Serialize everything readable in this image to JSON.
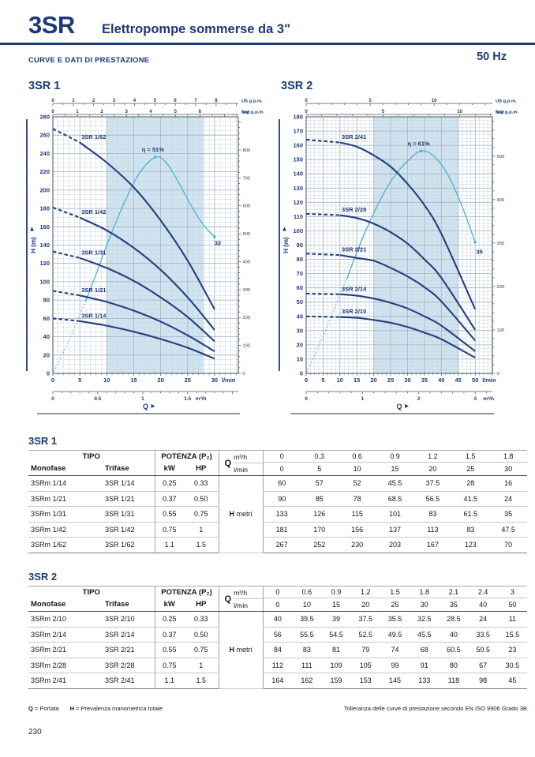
{
  "page": {
    "product_code": "3SR",
    "product_title": "Elettropompe sommerse da 3\"",
    "section_title": "CURVE E DATI DI PRESTAZIONE",
    "frequency": "50 Hz",
    "page_number": "230",
    "legend": [
      {
        "symbol": "Q",
        "text": "= Portata"
      },
      {
        "symbol": "H",
        "text": "= Prevalenza manometrica totale"
      }
    ],
    "tolerance_note": "Tolleranza delle curve di prestazione secondo EN ISO 9906 Grado 3B."
  },
  "colors": {
    "navy": "#1d3a78",
    "curve": "#24407c",
    "cyan": "#4fb0d4",
    "band": "#cfe4f0",
    "grid_minor": "#c9d4dc",
    "grid_major": "#9fb2bf",
    "axis": "#4c5258"
  },
  "chart_data": [
    {
      "type": "line",
      "title": "3SR 1",
      "xlabel": "Q",
      "ylabel": "H  (m)",
      "x_unit": "l/min",
      "xlim": [
        0,
        34.4
      ],
      "ylim": [
        0,
        280
      ],
      "x_major": 5,
      "x_minor": 1,
      "x_label_max": 30,
      "y_major": 20,
      "y_minor": 5,
      "band": [
        10,
        28
      ],
      "grid": true,
      "legend_position": "on-curve",
      "top_axes": [
        {
          "label": "US g.p.m.",
          "lmin_per_unit": 3.785,
          "tick_step": 1,
          "minor_step": 0.5,
          "label_max": 8
        },
        {
          "label": "Imp g.p.m.",
          "lmin_per_unit": 4.546,
          "tick_step": 1,
          "minor_step": 0.5,
          "label_max": 6
        }
      ],
      "bottom_axis": {
        "label": "m³/h",
        "lmin_per_unit": 16.6667,
        "tick_step": 0.5,
        "minor_step": 0.1,
        "label_max": 1.5
      },
      "right_axis": {
        "label": "feet",
        "m_per_unit": 0.3048,
        "tick_step": 100,
        "minor_step": 20,
        "label_max": 800
      },
      "x": [
        0,
        5,
        10,
        15,
        20,
        25,
        30
      ],
      "dash_until": 5,
      "series_label_x": 5.3,
      "series": [
        {
          "name": "3SR 1/62",
          "values": [
            267,
            252,
            230,
            203,
            167,
            123,
            70
          ]
        },
        {
          "name": "3SR 1/42",
          "values": [
            181,
            170,
            156,
            137,
            113,
            83,
            47.5
          ]
        },
        {
          "name": "3SR 1/31",
          "values": [
            133,
            126,
            115,
            101,
            83,
            61.5,
            35
          ]
        },
        {
          "name": "3SR 1/21",
          "values": [
            90,
            85,
            78,
            68.5,
            56.5,
            41.5,
            24
          ]
        },
        {
          "name": "3SR 1/14",
          "values": [
            60,
            57,
            52,
            45.5,
            37.5,
            28,
            16
          ]
        }
      ],
      "efficiency": {
        "label": "η = 51%",
        "end_label": "32",
        "solid_from": 6,
        "peak": [
          19,
          236
        ],
        "end_label_pos": [
          30.6,
          140
        ],
        "points": [
          [
            0.2,
            2
          ],
          [
            3,
            36
          ],
          [
            6,
            78
          ],
          [
            8,
            108
          ],
          [
            10,
            140
          ],
          [
            13,
            183
          ],
          [
            16,
            218
          ],
          [
            19,
            236
          ],
          [
            21,
            230
          ],
          [
            23,
            212
          ],
          [
            25,
            190
          ],
          [
            27,
            170
          ],
          [
            28.5,
            158
          ],
          [
            30,
            149
          ]
        ]
      }
    },
    {
      "type": "line",
      "title": "3SR 2",
      "xlabel": "Q",
      "ylabel": "H  (m)",
      "x_unit": "l/min",
      "xlim": [
        0,
        55.1
      ],
      "ylim": [
        0,
        180
      ],
      "x_major": 5,
      "x_minor": 1.25,
      "x_label_max": 50,
      "y_major": 10,
      "y_minor": 2.5,
      "band": [
        20,
        45
      ],
      "grid": true,
      "legend_position": "on-curve",
      "top_axes": [
        {
          "label": "US g.p.m.",
          "lmin_per_unit": 3.785,
          "tick_step": 5,
          "minor_step": 1,
          "label_max": 10
        },
        {
          "label": "Imp g.p.m.",
          "lmin_per_unit": 4.546,
          "tick_step": 5,
          "minor_step": 1,
          "label_max": 10
        }
      ],
      "bottom_axis": {
        "label": "m³/h",
        "lmin_per_unit": 16.6667,
        "tick_step": 1,
        "minor_step": 0.2,
        "label_max": 3
      },
      "right_axis": {
        "label": "feet",
        "m_per_unit": 0.3048,
        "tick_step": 100,
        "minor_step": 20,
        "label_max": 500
      },
      "x": [
        0,
        10,
        15,
        20,
        25,
        30,
        35,
        40,
        50
      ],
      "dash_until": 10,
      "series_label_x": 10.5,
      "series": [
        {
          "name": "3SR 2/41",
          "values": [
            164,
            162,
            159,
            153,
            145,
            133,
            118,
            98,
            45
          ]
        },
        {
          "name": "3SR 2/28",
          "values": [
            112,
            111,
            109,
            105,
            99,
            91,
            80,
            67,
            30.5
          ]
        },
        {
          "name": "3SR 2/21",
          "values": [
            84,
            83,
            81,
            79,
            74,
            68,
            60.5,
            50.5,
            23
          ]
        },
        {
          "name": "3SR 2/14",
          "values": [
            56,
            55.5,
            54.5,
            52.5,
            49.5,
            45.5,
            40,
            33.5,
            15.5
          ]
        },
        {
          "name": "3SR 2/10",
          "values": [
            40,
            39.5,
            39,
            37.5,
            35.5,
            32.5,
            28.5,
            24,
            11
          ]
        }
      ],
      "efficiency": {
        "label": "η = 61%",
        "end_label": "35",
        "solid_from": 12,
        "peak": [
          34,
          156
        ],
        "end_label_pos": [
          51.3,
          84
        ],
        "points": [
          [
            0.2,
            1
          ],
          [
            5,
            26
          ],
          [
            8,
            44
          ],
          [
            12,
            66
          ],
          [
            15,
            85
          ],
          [
            18,
            102
          ],
          [
            22,
            122
          ],
          [
            26,
            138
          ],
          [
            30,
            149
          ],
          [
            34,
            156
          ],
          [
            38,
            152
          ],
          [
            42,
            139
          ],
          [
            46,
            118
          ],
          [
            50,
            92
          ]
        ]
      }
    }
  ],
  "tables": [
    {
      "title": "3SR 1",
      "headers": {
        "tipo": "TIPO",
        "monofase": "Monofase",
        "trifase": "Trifase",
        "potenza": "POTENZA (P₂)",
        "kw": "kW",
        "hp": "HP",
        "q": "Q",
        "m3h": "m³/h",
        "lmin": "l/min",
        "h": "H",
        "h_unit": "metri"
      },
      "q_m3h": [
        "0",
        "0.3",
        "0.6",
        "0.9",
        "1.2",
        "1.5",
        "1.8"
      ],
      "q_lmin": [
        "0",
        "5",
        "10",
        "15",
        "20",
        "25",
        "30"
      ],
      "rows": [
        {
          "monofase": "3SRm 1/14",
          "trifase": "3SR 1/14",
          "kw": "0.25",
          "hp": "0.33",
          "h_values": [
            "60",
            "57",
            "52",
            "45.5",
            "37.5",
            "28",
            "16"
          ]
        },
        {
          "monofase": "3SRm 1/21",
          "trifase": "3SR 1/21",
          "kw": "0.37",
          "hp": "0.50",
          "h_values": [
            "90",
            "85",
            "78",
            "68.5",
            "56.5",
            "41.5",
            "24"
          ]
        },
        {
          "monofase": "3SRm 1/31",
          "trifase": "3SR 1/31",
          "kw": "0.55",
          "hp": "0.75",
          "h_values": [
            "133",
            "126",
            "115",
            "101",
            "83",
            "61.5",
            "35"
          ]
        },
        {
          "monofase": "3SRm 1/42",
          "trifase": "3SR 1/42",
          "kw": "0.75",
          "hp": "1",
          "h_values": [
            "181",
            "170",
            "156",
            "137",
            "113",
            "83",
            "47.5"
          ]
        },
        {
          "monofase": "3SRm 1/62",
          "trifase": "3SR 1/62",
          "kw": "1.1",
          "hp": "1.5",
          "h_values": [
            "267",
            "252",
            "230",
            "203",
            "167",
            "123",
            "70"
          ]
        }
      ]
    },
    {
      "title": "3SR 2",
      "headers": {
        "tipo": "TIPO",
        "monofase": "Monofase",
        "trifase": "Trifase",
        "potenza": "POTENZA (P₂)",
        "kw": "kW",
        "hp": "HP",
        "q": "Q",
        "m3h": "m³/h",
        "lmin": "l/min",
        "h": "H",
        "h_unit": "metri"
      },
      "q_m3h": [
        "0",
        "0.6",
        "0.9",
        "1.2",
        "1.5",
        "1.8",
        "2.1",
        "2.4",
        "3"
      ],
      "q_lmin": [
        "0",
        "10",
        "15",
        "20",
        "25",
        "30",
        "35",
        "40",
        "50"
      ],
      "rows": [
        {
          "monofase": "3SRm 2/10",
          "trifase": "3SR 2/10",
          "kw": "0.25",
          "hp": "0.33",
          "h_values": [
            "40",
            "39.5",
            "39",
            "37.5",
            "35.5",
            "32.5",
            "28.5",
            "24",
            "11"
          ]
        },
        {
          "monofase": "3SRm 2/14",
          "trifase": "3SR 2/14",
          "kw": "0.37",
          "hp": "0.50",
          "h_values": [
            "56",
            "55.5",
            "54.5",
            "52.5",
            "49.5",
            "45.5",
            "40",
            "33.5",
            "15.5"
          ]
        },
        {
          "monofase": "3SRm 2/21",
          "trifase": "3SR 2/21",
          "kw": "0.55",
          "hp": "0.75",
          "h_values": [
            "84",
            "83",
            "81",
            "79",
            "74",
            "68",
            "60.5",
            "50.5",
            "23"
          ]
        },
        {
          "monofase": "3SRm 2/28",
          "trifase": "3SR 2/28",
          "kw": "0.75",
          "hp": "1",
          "h_values": [
            "112",
            "111",
            "109",
            "105",
            "99",
            "91",
            "80",
            "67",
            "30.5"
          ]
        },
        {
          "monofase": "3SRm 2/41",
          "trifase": "3SR 2/41",
          "kw": "1.1",
          "hp": "1.5",
          "h_values": [
            "164",
            "162",
            "159",
            "153",
            "145",
            "133",
            "118",
            "98",
            "45"
          ]
        }
      ]
    }
  ]
}
